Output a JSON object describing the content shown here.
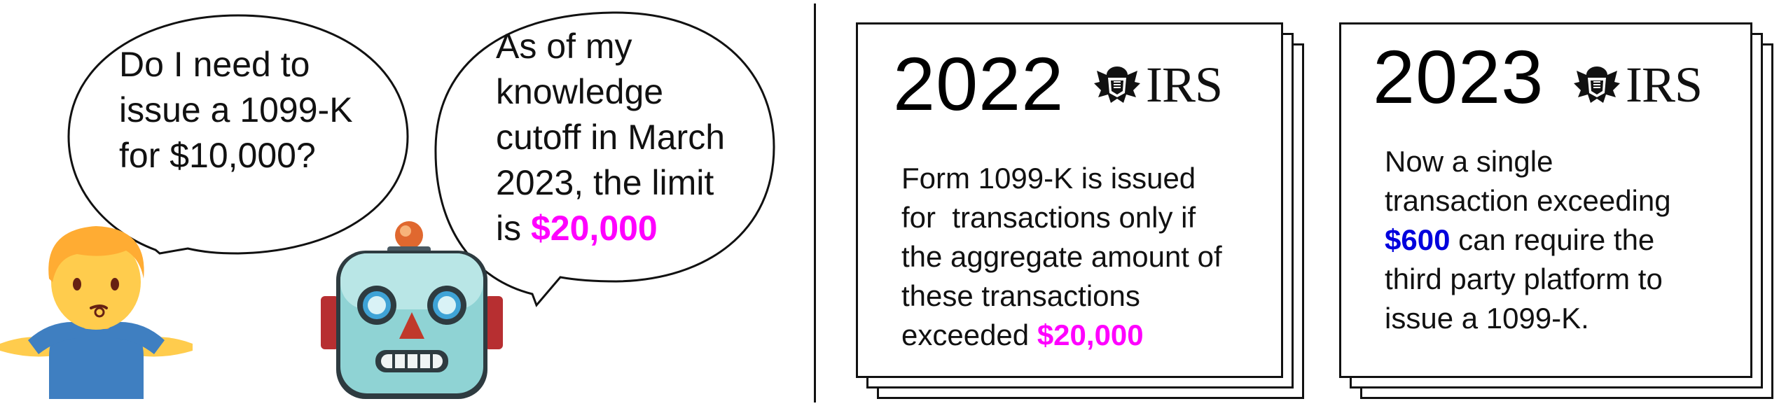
{
  "conversation": {
    "question_lines": [
      "Do I need to",
      "issue a 1099-K",
      "for $10,000?"
    ],
    "answer_lines": [
      "As of my",
      "knowledge",
      "cutoff in March",
      "2023, the limit"
    ],
    "answer_last_prefix": "is ",
    "answer_highlight": "$20,000",
    "highlight_color": "#ff00ff"
  },
  "icons": {
    "person": "shrugging-person-icon",
    "robot": "robot-face-icon",
    "irs": "irs-eagle-logo-icon"
  },
  "cards": [
    {
      "year": "2022",
      "logo_text": "IRS",
      "lines": [
        "Form 1099-K is issued",
        "for  transactions only if",
        "the aggregate amount of",
        "these transactions"
      ],
      "last_prefix": "exceeded ",
      "highlight": "$20,000",
      "highlight_color": "#ff00ff"
    },
    {
      "year": "2023",
      "logo_text": "IRS",
      "lines": [
        "Now a single",
        "transaction exceeding"
      ],
      "highlight": "$600",
      "highlight_suffix": " can require the",
      "more_lines": [
        "third party platform to",
        "issue a 1099-K."
      ],
      "highlight_color": "#0000dd"
    }
  ]
}
